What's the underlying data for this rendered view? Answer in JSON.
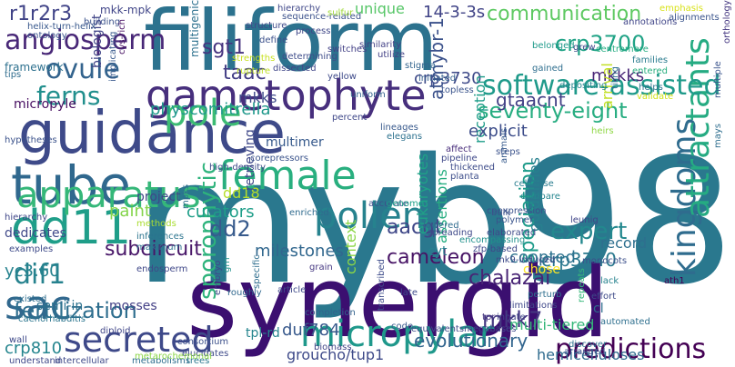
{
  "words": [
    {
      "t": "myb98",
      "c": "#2a788e"
    },
    {
      "t": "synergid",
      "c": "#3b0f70"
    },
    {
      "t": "filiform",
      "c": "#2c728e"
    },
    {
      "t": "guidance",
      "c": "#3e4a89"
    },
    {
      "t": "tube",
      "c": "#30688e"
    },
    {
      "t": "gametophyte",
      "c": "#472f7d"
    },
    {
      "t": "dd11",
      "c": "#1f9e89"
    },
    {
      "t": "apparatus",
      "c": "#35b779"
    },
    {
      "t": "female",
      "c": "#29af7f"
    },
    {
      "t": "pollen",
      "c": "#26828e"
    },
    {
      "t": "kingdoms",
      "c": "#2f6c8e"
    },
    {
      "t": "attractants",
      "c": "#25ab82"
    },
    {
      "t": "micropylar",
      "c": "#1f988b"
    },
    {
      "t": "predictions",
      "c": "#440154"
    },
    {
      "t": "secreted",
      "c": "#3e4989"
    },
    {
      "t": "angiosperm",
      "c": "#482777"
    },
    {
      "t": "pole",
      "c": "#3dbc74"
    },
    {
      "t": "sporophytic",
      "c": "#2eb37c"
    },
    {
      "t": "software-assisted",
      "c": "#1f9a8a"
    },
    {
      "t": "ovule",
      "c": "#33638d"
    },
    {
      "t": "ferns",
      "c": "#218f8d"
    },
    {
      "t": "communication",
      "c": "#5ec962"
    },
    {
      "t": "sac",
      "c": "#31688e"
    },
    {
      "t": "fertilization",
      "c": "#2e6e8e"
    },
    {
      "t": "dif1",
      "c": "#26828e"
    },
    {
      "t": "expert",
      "c": "#23888e"
    },
    {
      "t": "speciation",
      "c": "#1e9b8a"
    },
    {
      "t": "seventy-eight",
      "c": "#27ad81"
    },
    {
      "t": "crp3700",
      "c": "#20a386"
    },
    {
      "t": "crp3740",
      "c": "#2a788e"
    },
    {
      "t": "dd2",
      "c": "#375a8c"
    },
    {
      "t": "mkk7",
      "c": "#453781"
    },
    {
      "t": "chalazal",
      "c": "#482475"
    },
    {
      "t": "cameleon",
      "c": "#471365"
    },
    {
      "t": "aacgt",
      "c": "#3f4788"
    },
    {
      "t": "subcircuit",
      "c": "#481668"
    },
    {
      "t": "sgt1",
      "c": "#46337f"
    },
    {
      "t": "taac",
      "c": "#433e85"
    },
    {
      "t": "mkkks",
      "c": "#482576"
    },
    {
      "t": "mkks",
      "c": "#3e4989"
    },
    {
      "t": "gtaacnt",
      "c": "#424086"
    },
    {
      "t": "crp3730",
      "c": "#3e4a89"
    },
    {
      "t": "physcomitrella",
      "c": "#1f988b"
    },
    {
      "t": "r1r2r3",
      "c": "#404387"
    },
    {
      "t": "14-3-3s",
      "c": "#414487"
    },
    {
      "t": "unique",
      "c": "#56c667"
    },
    {
      "t": "yc3.60",
      "c": "#26828e"
    },
    {
      "t": "crp810",
      "c": "#25858e"
    },
    {
      "t": "paint",
      "c": "#84d44b"
    },
    {
      "t": "dd18",
      "c": "#b5de2b"
    },
    {
      "t": "atmybr-1",
      "c": "#3b518b"
    },
    {
      "t": "assertions",
      "c": "#27ad81"
    },
    {
      "t": "eukaryotes",
      "c": "#1fa287"
    },
    {
      "t": "curators",
      "c": "#1f9e89"
    },
    {
      "t": "duf784",
      "c": "#38598c"
    },
    {
      "t": "groucho/tup1",
      "c": "#3e4a89"
    },
    {
      "t": "evolutionary",
      "c": "#32658e"
    },
    {
      "t": "milestones",
      "c": "#31678e"
    },
    {
      "t": "multi-tiered",
      "c": "#35b779"
    },
    {
      "t": "context",
      "c": "#8bd646"
    },
    {
      "t": "hemicelluloses",
      "c": "#2f6b8e"
    },
    {
      "t": "arrival",
      "c": "#c2df23"
    },
    {
      "t": "reception",
      "c": "#1e9c89"
    },
    {
      "t": "explicit",
      "c": "#3d4d8a"
    },
    {
      "t": "guidelines",
      "c": "#27808e"
    },
    {
      "t": "coopted",
      "c": "#2c718e"
    },
    {
      "t": "record",
      "c": "#2e6f8e"
    },
    {
      "t": "chose",
      "c": "#fde725"
    },
    {
      "t": "micropyle",
      "c": "#470e61"
    },
    {
      "t": "biologist",
      "c": "#414487"
    },
    {
      "t": "framework",
      "c": "#2d708e"
    },
    {
      "t": "dedicates",
      "c": "#3f4889"
    },
    {
      "t": "project",
      "c": "#3f4788"
    },
    {
      "t": "multimer",
      "c": "#375a8c"
    },
    {
      "t": "semi-in",
      "c": "#2c728e"
    },
    {
      "t": "mosses",
      "c": "#423f85"
    },
    {
      "t": "tpl-rd",
      "c": "#25858e"
    },
    {
      "t": "cl",
      "c": "#2e6e8e"
    },
    {
      "t": "retrieving",
      "c": "#3f4889"
    },
    {
      "t": "cyt",
      "c": "#277f8e"
    },
    {
      "t": "mkk-mpk",
      "c": "#404588"
    },
    {
      "t": "multigenic",
      "c": "#2d718e"
    },
    {
      "t": "helix-turn-helix",
      "c": "#38588c"
    },
    {
      "t": "ontology",
      "c": "#3a548c"
    },
    {
      "t": "building",
      "c": "#3b528b"
    },
    {
      "t": "structure",
      "c": "#3e4a89"
    },
    {
      "t": "hierarchy",
      "c": "#3f4788"
    },
    {
      "t": "sequence-related",
      "c": "#3b518b"
    },
    {
      "t": "similarity",
      "c": "#424186"
    },
    {
      "t": "switches",
      "c": "#424086"
    },
    {
      "t": "utilize",
      "c": "#424086"
    },
    {
      "t": "stigma",
      "c": "#32648e"
    },
    {
      "t": "initiated",
      "c": "#35608d"
    },
    {
      "t": "topless",
      "c": "#3a548c"
    },
    {
      "t": "define",
      "c": "#3c508b"
    },
    {
      "t": "determining",
      "c": "#3e4c8a"
    },
    {
      "t": "dissected",
      "c": "#404688"
    },
    {
      "t": "strengths",
      "c": "#c8e020"
    },
    {
      "t": "rupture",
      "c": "#c0df25"
    },
    {
      "t": "yellow",
      "c": "#3e4a89"
    },
    {
      "t": "uniform",
      "c": "#33638d"
    },
    {
      "t": "sulfur",
      "c": "#a0da39"
    },
    {
      "t": "emphasis",
      "c": "#d8e219"
    },
    {
      "t": "alignments",
      "c": "#3a548c"
    },
    {
      "t": "annotations",
      "c": "#404688"
    },
    {
      "t": "centromere",
      "c": "#25ac82"
    },
    {
      "t": "grew",
      "c": "#3f4889"
    },
    {
      "t": "belonged",
      "c": "#1f9a8a"
    },
    {
      "t": "gained",
      "c": "#2e6e8e"
    },
    {
      "t": "depositing",
      "c": "#25858e"
    },
    {
      "t": "families",
      "c": "#297b8e"
    },
    {
      "t": "entered",
      "c": "#29af7f"
    },
    {
      "t": "tiling",
      "c": "#2d718e"
    },
    {
      "t": "helps",
      "c": "#2c738e"
    },
    {
      "t": "validate",
      "c": "#d2e21b"
    },
    {
      "t": "orthology",
      "c": "#453781"
    },
    {
      "t": "tips",
      "c": "#2f6c8e"
    },
    {
      "t": "cys-rich",
      "c": "#471063"
    },
    {
      "t": "implicating",
      "c": "#38598c"
    },
    {
      "t": "hypotheses",
      "c": "#3b528b"
    },
    {
      "t": "percent",
      "c": "#3f4889"
    },
    {
      "t": "lineages",
      "c": "#38598c"
    },
    {
      "t": "elegans",
      "c": "#2c718e"
    },
    {
      "t": "affect",
      "c": "#472c7a"
    },
    {
      "t": "pipeline",
      "c": "#3f4889"
    },
    {
      "t": "thickened",
      "c": "#3e4c8a"
    },
    {
      "t": "planta",
      "c": "#3d4e8a"
    },
    {
      "t": "steps",
      "c": "#3b528b"
    },
    {
      "t": "animals",
      "c": "#375b8d"
    },
    {
      "t": "cellulose",
      "c": "#287c8e"
    },
    {
      "t": "compare",
      "c": "#25858e"
    },
    {
      "t": "leunig",
      "c": "#404588"
    },
    {
      "t": "multiple",
      "c": "#3a548c"
    },
    {
      "t": "mays",
      "c": "#2e6e8e"
    },
    {
      "t": "bulk",
      "c": "#3b528b"
    },
    {
      "t": "heirs",
      "c": "#8fd744"
    },
    {
      "t": "hierarchy",
      "c": "#3f4788"
    },
    {
      "t": "examples",
      "c": "#3e4a89"
    },
    {
      "t": "methods",
      "c": "#aadc32"
    },
    {
      "t": "inferences",
      "c": "#2b748e"
    },
    {
      "t": "maximum",
      "c": "#2d708e"
    },
    {
      "t": "high-density",
      "c": "#3e4a89"
    },
    {
      "t": "corepressors",
      "c": "#3a538b"
    },
    {
      "t": "enriched",
      "c": "#2f6b8e"
    },
    {
      "t": "accurate",
      "c": "#3c508b"
    },
    {
      "t": "genome",
      "c": "#1fa088"
    },
    {
      "t": "coexpression",
      "c": "#3b518b"
    },
    {
      "t": "polymer",
      "c": "#3a548c"
    },
    {
      "t": "elaborated",
      "c": "#3e4a89"
    },
    {
      "t": "lowered",
      "c": "#2f6b8e"
    },
    {
      "t": "spreading",
      "c": "#3e4989"
    },
    {
      "t": "encompassing",
      "c": "#21918c"
    },
    {
      "t": "zfp-based",
      "c": "#3f4889"
    },
    {
      "t": "mk9-induced",
      "c": "#3e4a89"
    },
    {
      "t": "monocots",
      "c": "#3c508b"
    },
    {
      "t": "endosperm",
      "c": "#3f4788"
    },
    {
      "t": "existed",
      "c": "#2e6e8e"
    },
    {
      "t": "caenorhabditis",
      "c": "#2b758e"
    },
    {
      "t": "diploid",
      "c": "#404688"
    },
    {
      "t": "article",
      "c": "#3e4a89"
    },
    {
      "t": "grain",
      "c": "#453781"
    },
    {
      "t": "grn",
      "c": "#21918c"
    },
    {
      "t": "roughly",
      "c": "#30688e"
    },
    {
      "t": "specific",
      "c": "#2e6e8e"
    },
    {
      "t": "transcribed",
      "c": "#3e4c8a"
    },
    {
      "t": "perturb",
      "c": "#2e6f8e"
    },
    {
      "t": "limitations",
      "c": "#3f4889"
    },
    {
      "t": "tpr",
      "c": "#453781"
    },
    {
      "t": "innate",
      "c": "#414487"
    },
    {
      "t": "ath1",
      "c": "#440154"
    },
    {
      "t": "lack",
      "c": "#26828e"
    },
    {
      "t": "effort",
      "c": "#3e4a89"
    },
    {
      "t": "repeats",
      "c": "#35b779"
    },
    {
      "t": "megabases",
      "c": "#3e4989"
    },
    {
      "t": "equivalents",
      "c": "#3e4a89"
    },
    {
      "t": "code",
      "c": "#38598c"
    },
    {
      "t": "biomass",
      "c": "#414487"
    },
    {
      "t": "completion",
      "c": "#33638d"
    },
    {
      "t": "automated",
      "c": "#2e6f8e"
    },
    {
      "t": "discover",
      "c": "#2c728e"
    },
    {
      "t": "arranged",
      "c": "#3d4e8a"
    },
    {
      "t": "consortium",
      "c": "#3c508b"
    },
    {
      "t": "elucidates",
      "c": "#3e4a89"
    },
    {
      "t": "trees",
      "c": "#2a778e"
    },
    {
      "t": "wall",
      "c": "#3e4989"
    },
    {
      "t": "understand",
      "c": "#3f4889"
    },
    {
      "t": "intercellular",
      "c": "#3e4a89"
    },
    {
      "t": "metabolisms",
      "c": "#2e6e8e"
    },
    {
      "t": "metarochemonal",
      "c": "#8bd646"
    },
    {
      "t": "mpks",
      "c": "#2f6c8e"
    },
    {
      "t": "embryo",
      "c": "#3f4889"
    },
    {
      "t": "late",
      "c": "#3e4a89"
    },
    {
      "t": "process",
      "c": "#3f4788"
    }
  ]
}
